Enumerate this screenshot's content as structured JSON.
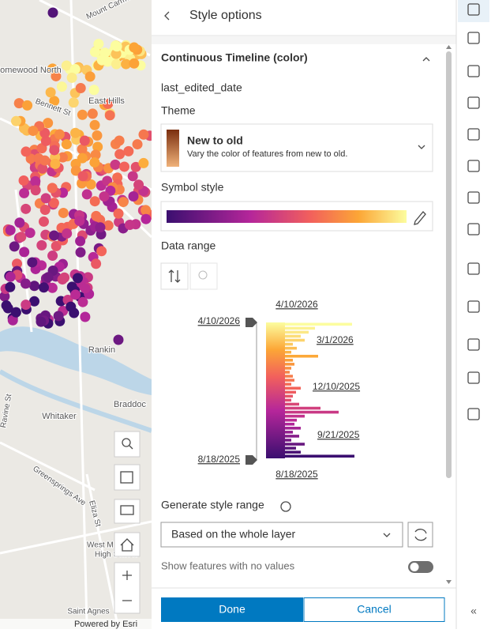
{
  "map": {
    "labels": [
      "Mount Carmel Rd",
      "Homewood North",
      "Bennett St",
      "East Hills",
      "Rankin",
      "Whitaker",
      "Braddoc",
      "Ravine St",
      "Greensprings Ave",
      "Eliza St",
      "West M",
      "High School",
      "Saint Agnes"
    ],
    "attribution": "Powered by Esri"
  },
  "panel": {
    "title": "Style options",
    "section": "Continuous Timeline (color)",
    "field": "last_edited_date",
    "theme_label": "Theme",
    "theme": {
      "name": "New to old",
      "description": "Vary the color of features from new to old."
    },
    "symbol_style_label": "Symbol style",
    "data_range_label": "Data range",
    "histogram": {
      "top_label": "4/10/2026",
      "upper_handle": "4/10/2026",
      "lower_handle": "8/18/2025",
      "bottom_label": "8/18/2025",
      "ticks": [
        "3/1/2026",
        "12/10/2025",
        "9/21/2025"
      ],
      "counts": [
        85,
        38,
        30,
        20,
        25,
        10,
        15,
        8,
        42,
        10,
        12,
        8,
        6,
        10,
        12,
        8,
        20,
        14,
        10,
        8,
        18,
        45,
        68,
        25,
        15,
        12,
        20,
        10,
        18,
        8,
        25,
        14,
        20,
        88
      ]
    },
    "generate_label": "Generate style range",
    "dropdown": "Based on the whole layer",
    "toggle_label": "Show features with no values",
    "done": "Done",
    "cancel": "Cancel"
  }
}
